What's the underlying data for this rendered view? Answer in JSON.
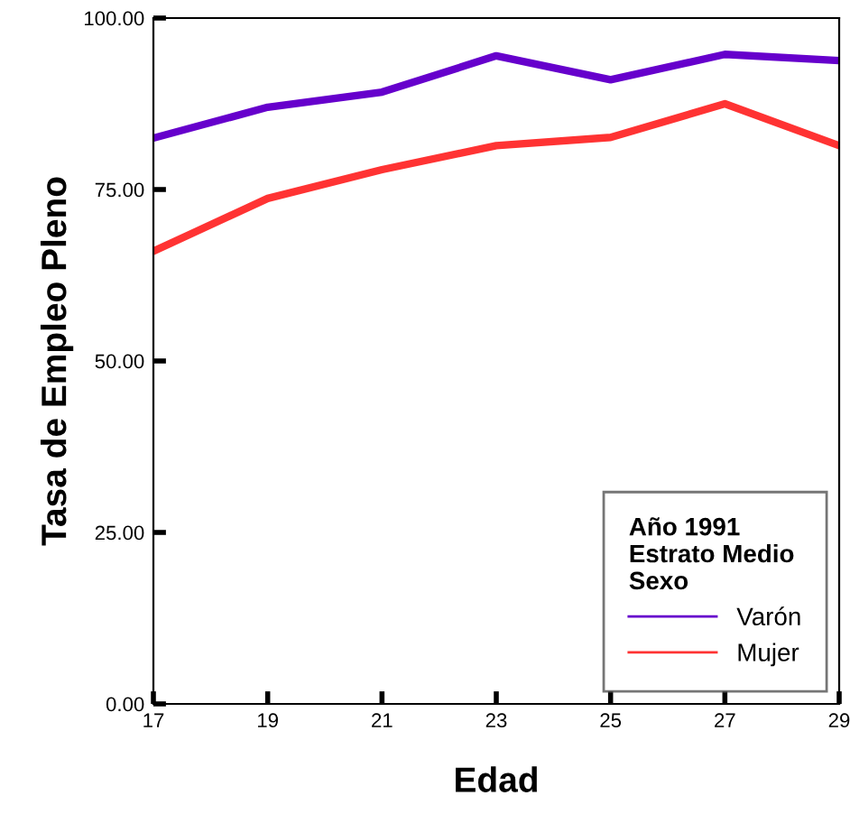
{
  "chart_data": {
    "type": "line",
    "xlabel": "Edad",
    "ylabel": "Tasa de Empleo Pleno",
    "legend_title": "Año 1991\nEstrato Medio\nSexo",
    "x": [
      17,
      19,
      21,
      23,
      25,
      27,
      29
    ],
    "xlim": [
      17,
      29
    ],
    "xticks": [
      17,
      19,
      21,
      23,
      25,
      27,
      29
    ],
    "ylim": [
      0,
      100
    ],
    "yticks": [
      {
        "value": 0,
        "label": "0.00"
      },
      {
        "value": 25,
        "label": "25.00"
      },
      {
        "value": 50,
        "label": "50.00"
      },
      {
        "value": 75,
        "label": "75.00"
      },
      {
        "value": 100,
        "label": "100.00"
      }
    ],
    "series": [
      {
        "name": "Varón",
        "color": "#6600cc",
        "values": [
          82.5,
          87.0,
          89.2,
          94.5,
          91.0,
          94.7,
          93.8
        ]
      },
      {
        "name": "Mujer",
        "color": "#ff3333",
        "values": [
          66.0,
          73.7,
          77.9,
          81.4,
          82.6,
          87.5,
          81.4
        ]
      }
    ],
    "legend": "bottom right",
    "grid": false
  }
}
